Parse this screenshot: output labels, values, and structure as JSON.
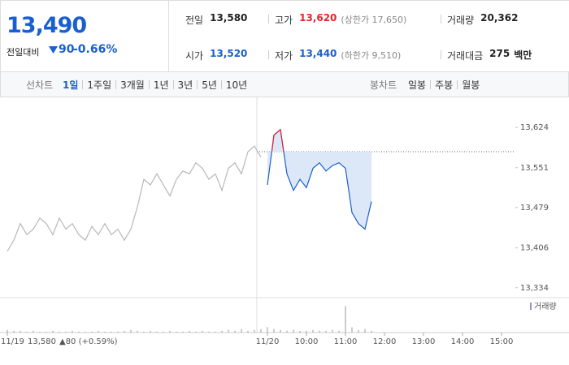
{
  "header": {
    "price": "13,490",
    "change_label": "전일대비",
    "change": "90",
    "change_pct": "-0.66%"
  },
  "stats": [
    {
      "label": "전일",
      "value": "13,580",
      "color": "#222222"
    },
    {
      "label": "고가",
      "value": "13,620",
      "color": "#e3242b",
      "note": "(상한가 17,650)"
    },
    {
      "label": "거래량",
      "value": "20,362",
      "color": "#222222"
    },
    {
      "label": "시가",
      "value": "13,520",
      "color": "#1a5fd0"
    },
    {
      "label": "저가",
      "value": "13,440",
      "color": "#1a5fd0",
      "note": "(하한가 9,510)"
    },
    {
      "label": "거래대금",
      "value": "275",
      "unit": "백만",
      "color": "#222222"
    }
  ],
  "tabs": {
    "line_label": "선차트",
    "line_options": [
      "1일",
      "1주일",
      "3개월",
      "1년",
      "3년",
      "5년",
      "10년"
    ],
    "selected": 0,
    "candle_label": "봉차트",
    "candle_options": [
      "일봉",
      "주봉",
      "월봉"
    ]
  },
  "chart_data": {
    "type": "line",
    "categories": [
      "11/19",
      null,
      null,
      null,
      null,
      null,
      null,
      null,
      null,
      null,
      null,
      null,
      null,
      null,
      null,
      null,
      null,
      null,
      null,
      null,
      null,
      null,
      null,
      null,
      null,
      null,
      null,
      null,
      null,
      null,
      null,
      null,
      null,
      null,
      null,
      null,
      null,
      null,
      null,
      null,
      "11/20",
      null,
      null,
      null,
      null,
      null,
      "10:00",
      null,
      null,
      null,
      null,
      null,
      "11:00",
      null,
      null,
      null,
      null,
      null,
      "12:00",
      null,
      null,
      null,
      null,
      null,
      "13:00",
      null,
      null,
      null,
      null,
      null,
      "14:00",
      null,
      null,
      null,
      null,
      null,
      "15:00",
      null,
      null,
      null
    ],
    "series": [
      {
        "color": "#b8b8b8",
        "values": [
          13400,
          13420,
          13450,
          13430,
          13440,
          13460,
          13450,
          13430,
          13460,
          13440,
          13450,
          13430,
          13420,
          13445,
          13430,
          13450,
          13430,
          13440,
          13420,
          13440,
          13480,
          13530,
          13520,
          13540,
          13520,
          13500,
          13530,
          13545,
          13540,
          13560,
          13550,
          13530,
          13540,
          13510,
          13550,
          13560,
          13540,
          13580,
          13590,
          13570,
          null,
          null,
          null,
          null,
          null,
          null,
          null,
          null,
          null,
          null,
          null,
          null,
          null,
          null,
          null,
          null,
          null,
          null,
          null,
          null,
          null,
          null,
          null,
          null,
          null,
          null,
          null,
          null,
          null,
          null,
          null,
          null,
          null,
          null,
          null,
          null,
          null,
          null,
          null,
          null
        ]
      },
      {
        "color": "#1a5fd0",
        "up_color": "#e3242b",
        "fill": "#dce8f8",
        "values": [
          null,
          null,
          null,
          null,
          null,
          null,
          null,
          null,
          null,
          null,
          null,
          null,
          null,
          null,
          null,
          null,
          null,
          null,
          null,
          null,
          null,
          null,
          null,
          null,
          null,
          null,
          null,
          null,
          null,
          null,
          null,
          null,
          null,
          null,
          null,
          null,
          null,
          null,
          null,
          null,
          13520,
          13610,
          13620,
          13540,
          13510,
          13530,
          13515,
          13550,
          13560,
          13545,
          13555,
          13560,
          13550,
          13470,
          13450,
          13440,
          13490,
          null,
          null,
          null,
          null,
          null,
          null,
          null,
          null,
          null,
          null,
          null,
          null,
          null,
          null,
          null,
          null,
          null,
          null,
          null,
          null,
          null,
          null,
          null
        ]
      },
      {
        "name": "거래량",
        "color": "#9a9a9a",
        "legend_color": "#9b8fc7",
        "axis": "volume",
        "values": [
          3,
          2,
          2,
          1,
          2,
          1,
          1,
          2,
          1,
          1,
          2,
          1,
          1,
          1,
          2,
          1,
          1,
          1,
          2,
          3,
          2,
          1,
          2,
          1,
          1,
          2,
          1,
          1,
          2,
          1,
          2,
          1,
          1,
          2,
          3,
          2,
          4,
          2,
          3,
          4,
          6,
          4,
          3,
          2,
          3,
          2,
          2,
          3,
          2,
          2,
          3,
          2,
          30,
          6,
          3,
          4,
          2,
          null,
          null,
          null,
          null,
          null,
          null,
          null,
          null,
          null,
          null,
          null,
          null,
          null,
          null,
          null,
          null,
          null,
          null,
          null,
          null,
          null,
          null,
          null
        ]
      }
    ],
    "reference": 13580,
    "reference_label": "13,580",
    "reference_change": "▲80 (+0.59%)",
    "ylim": [
      13319,
      13671
    ],
    "yticks": [
      {
        "value": 13624,
        "label": "13,624"
      },
      {
        "value": 13551,
        "label": "13,551"
      },
      {
        "value": 13479,
        "label": "13,479"
      },
      {
        "value": 13406,
        "label": "13,406"
      },
      {
        "value": 13334,
        "label": "13,334"
      }
    ],
    "volume_ylim": [
      0,
      35
    ]
  }
}
